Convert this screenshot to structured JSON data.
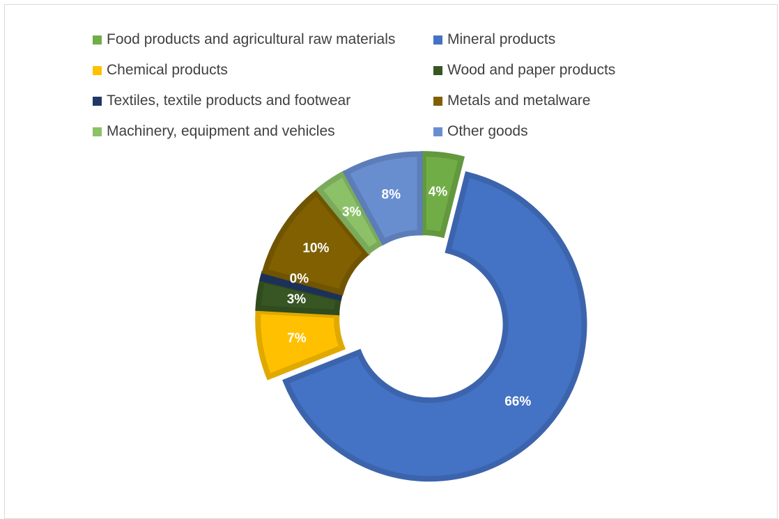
{
  "chart_data": {
    "type": "pie",
    "variant": "donut",
    "exploded": true,
    "legend_position": "top",
    "categories": [
      "Food products and agricultural raw materials",
      "Mineral products",
      "Chemical products",
      "Wood and paper products",
      "Textiles, textile products and footwear",
      "Metals and metalware",
      "Machinery, equipment and vehicles",
      "Other goods"
    ],
    "values": [
      4,
      66,
      7,
      3,
      0,
      10,
      3,
      8
    ],
    "data_labels": [
      "4%",
      "66%",
      "7%",
      "3%",
      "0%",
      "10%",
      "3%",
      "8%"
    ],
    "colors": [
      "#70AD47",
      "#4472C4",
      "#FFC000",
      "#375623",
      "#203864",
      "#806000",
      "#8CC168",
      "#698ED0"
    ]
  }
}
